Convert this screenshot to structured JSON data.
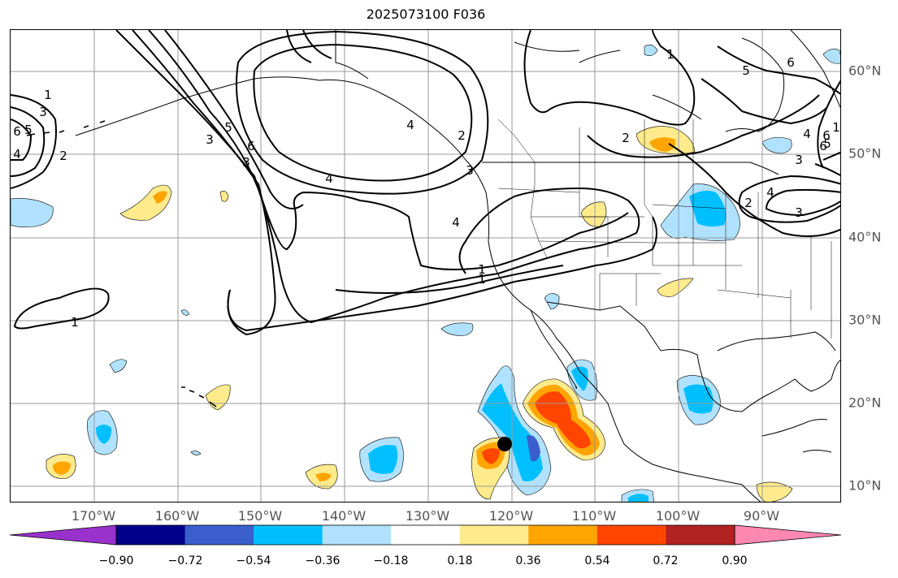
{
  "title": "2025073100 F036",
  "axes": {
    "lon_labels": [
      "170°W",
      "160°W",
      "150°W",
      "140°W",
      "130°W",
      "120°W",
      "110°W",
      "100°W",
      "90°W"
    ],
    "lat_labels": [
      "60°N",
      "50°N",
      "40°N",
      "30°N",
      "20°N",
      "10°N"
    ]
  },
  "colorbar": {
    "tick_labels": [
      "−0.90",
      "−0.72",
      "−0.54",
      "−0.36",
      "−0.18",
      "0.18",
      "0.36",
      "0.54",
      "0.72",
      "0.90"
    ],
    "colors": [
      "#9932cc",
      "#00008b",
      "#3a5fcd",
      "#00bfff",
      "#b0e2ff",
      "#ffffff",
      "#ffeb8c",
      "#ffa500",
      "#ff4500",
      "#b22222",
      "#ff88b0"
    ]
  },
  "contour_labels": [
    "1",
    "3",
    "5",
    "1",
    "2",
    "3",
    "4",
    "6",
    "4",
    "1",
    "1",
    "2",
    "5",
    "6",
    "5",
    "3",
    "6",
    "4",
    "3",
    "4",
    "1",
    "2",
    "1",
    "3",
    "5",
    "6",
    "4",
    "3",
    "2",
    "4",
    "6"
  ],
  "marker": {
    "type": "storm-center"
  }
}
